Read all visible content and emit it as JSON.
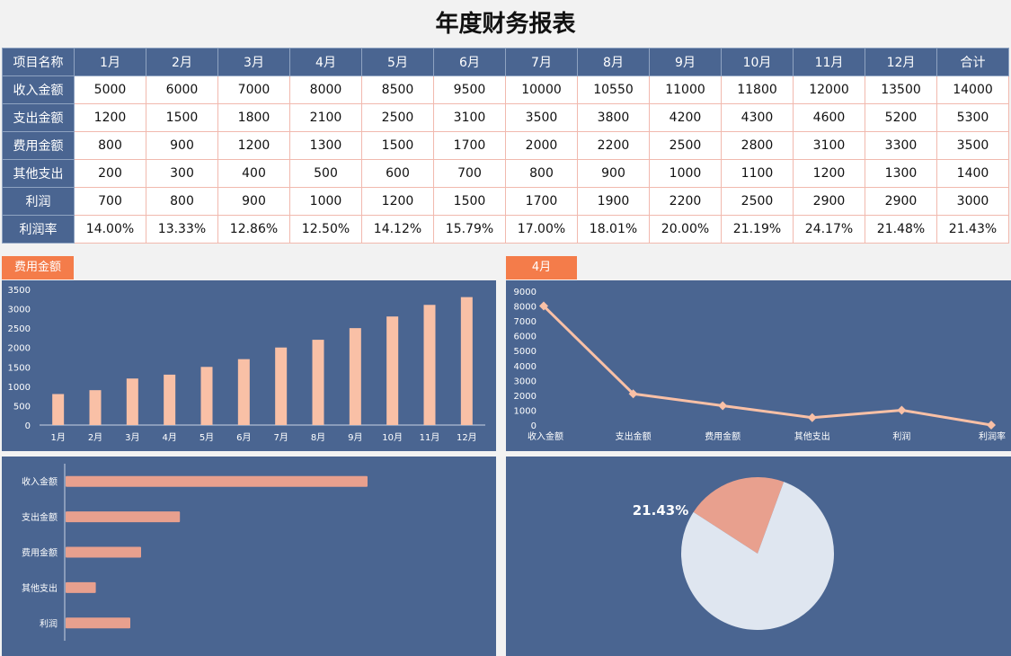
{
  "title": "年度财务报表",
  "table": {
    "headers": [
      "项目名称",
      "1月",
      "2月",
      "3月",
      "4月",
      "5月",
      "6月",
      "7月",
      "8月",
      "9月",
      "10月",
      "11月",
      "12月",
      "合计"
    ],
    "rows": [
      [
        "收入金额",
        "5000",
        "6000",
        "7000",
        "8000",
        "8500",
        "9500",
        "10000",
        "10550",
        "11000",
        "11800",
        "12000",
        "13500",
        "14000"
      ],
      [
        "支出金额",
        "1200",
        "1500",
        "1800",
        "2100",
        "2500",
        "3100",
        "3500",
        "3800",
        "4200",
        "4300",
        "4600",
        "5200",
        "5300"
      ],
      [
        "费用金额",
        "800",
        "900",
        "1200",
        "1300",
        "1500",
        "1700",
        "2000",
        "2200",
        "2500",
        "2800",
        "3100",
        "3300",
        "3500"
      ],
      [
        "其他支出",
        "200",
        "300",
        "400",
        "500",
        "600",
        "700",
        "800",
        "900",
        "1000",
        "1100",
        "1200",
        "1300",
        "1400"
      ],
      [
        "利润",
        "700",
        "800",
        "900",
        "1000",
        "1200",
        "1500",
        "1700",
        "1900",
        "2200",
        "2500",
        "2900",
        "2900",
        "3000"
      ],
      [
        "利润率",
        "14.00%",
        "13.33%",
        "12.86%",
        "12.50%",
        "14.12%",
        "15.79%",
        "17.00%",
        "18.01%",
        "20.00%",
        "21.19%",
        "24.17%",
        "21.48%",
        "21.43%"
      ]
    ]
  },
  "colors": {
    "panel": "#4a6591",
    "tag": "#f47c4a",
    "bar": "#f9c0a6",
    "line": "#f9c0a6",
    "hbar": "#e8a08e",
    "pie_slice": "#e8a08e",
    "pie_rest": "#dfe6f0"
  },
  "chart_data": [
    {
      "type": "bar",
      "tag": "费用金额",
      "categories": [
        "1月",
        "2月",
        "3月",
        "4月",
        "5月",
        "6月",
        "7月",
        "8月",
        "9月",
        "10月",
        "11月",
        "12月"
      ],
      "values": [
        800,
        900,
        1200,
        1300,
        1500,
        1700,
        2000,
        2200,
        2500,
        2800,
        3100,
        3300
      ],
      "yticks": [
        "0",
        "500",
        "1000",
        "1500",
        "2000",
        "2500",
        "3000",
        "3500"
      ],
      "ylim": [
        0,
        3500
      ],
      "grid": false
    },
    {
      "type": "line",
      "tag": "4月",
      "categories": [
        "收入金额",
        "支出金额",
        "费用金额",
        "其他支出",
        "利润",
        "利润率"
      ],
      "values": [
        8000,
        2100,
        1300,
        500,
        1000,
        0.125
      ],
      "yticks": [
        "0",
        "1000",
        "2000",
        "3000",
        "4000",
        "5000",
        "6000",
        "7000",
        "8000",
        "9000"
      ],
      "ylim": [
        0,
        9000
      ],
      "grid": false
    },
    {
      "type": "bar",
      "orientation": "horizontal",
      "categories": [
        "收入金额",
        "支出金额",
        "费用金额",
        "其他支出",
        "利润"
      ],
      "values": [
        14000,
        5300,
        3500,
        1400,
        3000
      ],
      "xlim": [
        0,
        20000
      ]
    },
    {
      "type": "pie",
      "values": [
        0.2143,
        0.7857
      ],
      "label": "21.43%"
    }
  ]
}
